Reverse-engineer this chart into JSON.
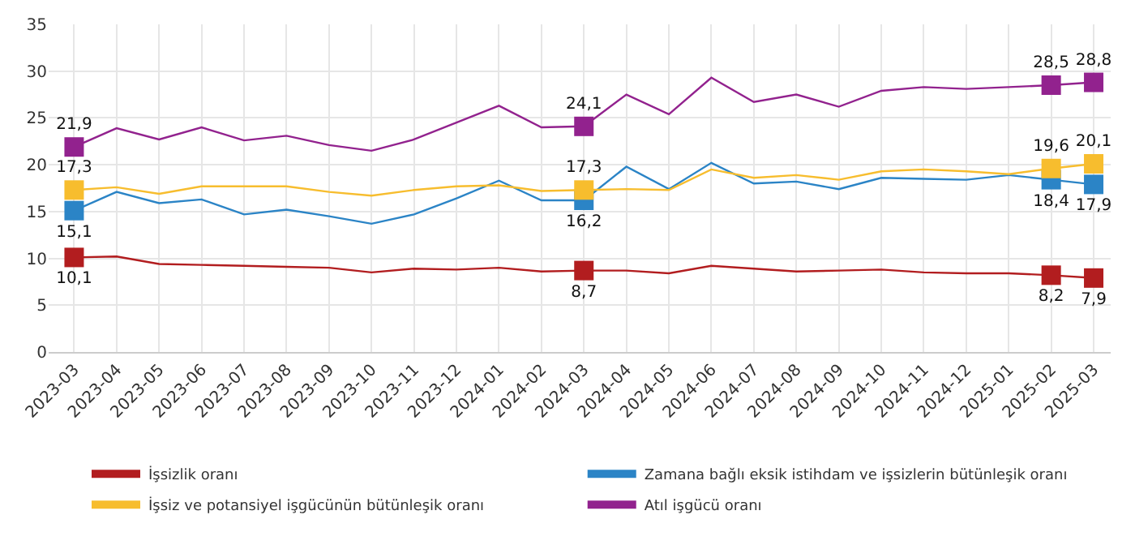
{
  "chart_data": {
    "type": "line",
    "categories": [
      "2023-03",
      "2023-04",
      "2023-05",
      "2023-06",
      "2023-07",
      "2023-08",
      "2023-09",
      "2023-10",
      "2023-11",
      "2023-12",
      "2024-01",
      "2024-02",
      "2024-03",
      "2024-04",
      "2024-05",
      "2024-06",
      "2024-07",
      "2024-08",
      "2024-09",
      "2024-10",
      "2024-11",
      "2024-12",
      "2025-01",
      "2025-02",
      "2025-03"
    ],
    "series": [
      {
        "name": "İşsizlik oranı",
        "color": "#b21d1f",
        "values": [
          10.1,
          10.2,
          9.4,
          9.3,
          9.2,
          9.1,
          9.0,
          8.5,
          8.9,
          8.8,
          9.0,
          8.6,
          8.7,
          8.7,
          8.4,
          9.2,
          8.9,
          8.6,
          8.7,
          8.8,
          8.5,
          8.4,
          8.4,
          8.2,
          7.9
        ],
        "value_labels": [
          "10,1",
          null,
          null,
          null,
          null,
          null,
          null,
          null,
          null,
          null,
          null,
          null,
          "8,7",
          null,
          null,
          null,
          null,
          null,
          null,
          null,
          null,
          null,
          null,
          "8,2",
          "7,9"
        ]
      },
      {
        "name": "Zamana bağlı eksik istihdam ve işsizlerin bütünleşik oranı",
        "color": "#2b84c6",
        "values": [
          15.1,
          17.1,
          15.9,
          16.3,
          14.7,
          15.2,
          14.5,
          13.7,
          14.7,
          16.4,
          18.3,
          16.2,
          16.2,
          19.8,
          17.4,
          20.2,
          18.0,
          18.2,
          17.4,
          18.6,
          18.5,
          18.4,
          18.9,
          18.4,
          17.9
        ],
        "value_labels": [
          "15,1",
          null,
          null,
          null,
          null,
          null,
          null,
          null,
          null,
          null,
          null,
          null,
          "16,2",
          null,
          null,
          null,
          null,
          null,
          null,
          null,
          null,
          null,
          null,
          "18,4",
          "17,9"
        ]
      },
      {
        "name": "İşsiz ve potansiyel işgücünün bütünleşik oranı",
        "color": "#f7bd2e",
        "values": [
          17.3,
          17.6,
          16.9,
          17.7,
          17.7,
          17.7,
          17.1,
          16.7,
          17.3,
          17.7,
          17.8,
          17.2,
          17.3,
          17.4,
          17.3,
          19.5,
          18.6,
          18.9,
          18.4,
          19.3,
          19.5,
          19.3,
          19.0,
          19.6,
          20.1
        ],
        "value_labels": [
          "17,3",
          null,
          null,
          null,
          null,
          null,
          null,
          null,
          null,
          null,
          null,
          null,
          "17,3",
          null,
          null,
          null,
          null,
          null,
          null,
          null,
          null,
          null,
          null,
          "19,6",
          "20,1"
        ]
      },
      {
        "name": "Atıl işgücü oranı",
        "color": "#92228e",
        "values": [
          21.9,
          23.9,
          22.7,
          24.0,
          22.6,
          23.1,
          22.1,
          21.5,
          22.7,
          24.5,
          26.3,
          24.0,
          24.1,
          27.5,
          25.4,
          29.3,
          26.7,
          27.5,
          26.2,
          27.9,
          28.3,
          28.1,
          28.3,
          28.5,
          28.8
        ],
        "value_labels": [
          "21,9",
          null,
          null,
          null,
          null,
          null,
          null,
          null,
          null,
          null,
          null,
          null,
          "24,1",
          null,
          null,
          null,
          null,
          null,
          null,
          null,
          null,
          null,
          null,
          "28,5",
          "28,8"
        ]
      }
    ],
    "ylim": [
      0,
      35
    ],
    "yticks": [
      0,
      5,
      10,
      15,
      20,
      25,
      30,
      35
    ],
    "grid": true,
    "legend": "bottom",
    "line_style": "solid"
  }
}
